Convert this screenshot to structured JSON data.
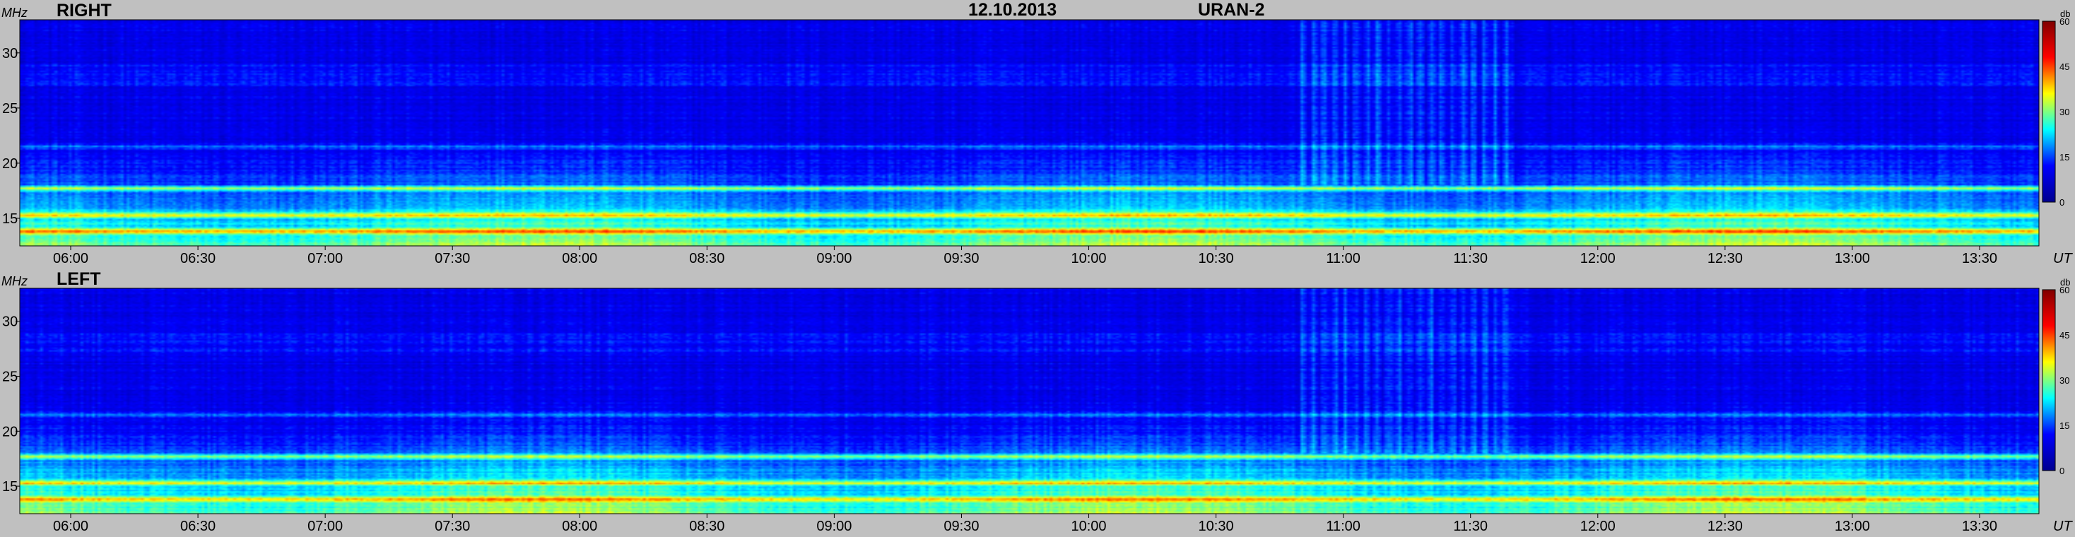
{
  "header": {
    "date": "12.10.2013",
    "instrument": "URAN-2"
  },
  "chart_data": [
    {
      "type": "heatmap",
      "panel_label": "RIGHT",
      "ylabel": "MHz",
      "xlabel": "UT",
      "colorbar_label": "db",
      "x_ticks": [
        "06:00",
        "06:30",
        "07:00",
        "07:30",
        "08:00",
        "08:30",
        "09:00",
        "09:30",
        "10:00",
        "10:30",
        "11:00",
        "11:30",
        "12:00",
        "12:30",
        "13:00",
        "13:30"
      ],
      "x_tick_minutes": [
        360,
        390,
        420,
        450,
        480,
        510,
        540,
        570,
        600,
        630,
        660,
        690,
        720,
        750,
        780,
        810
      ],
      "x_range_minutes": [
        348,
        824
      ],
      "y_ticks": [
        15,
        20,
        25,
        30
      ],
      "y_range_mhz": [
        12.5,
        33
      ],
      "colorbar_ticks": [
        0,
        15,
        30,
        45,
        60
      ],
      "color_range_db": [
        0,
        60
      ],
      "colormap": [
        "#00008f",
        "#0000ff",
        "#00ffff",
        "#ffff00",
        "#ff0000",
        "#800000"
      ],
      "strong_bands_mhz": [
        15.3,
        17.7,
        13.8,
        21.5
      ],
      "burst_interval_minutes": [
        650,
        700
      ]
    },
    {
      "type": "heatmap",
      "panel_label": "LEFT",
      "ylabel": "MHz",
      "xlabel": "UT",
      "colorbar_label": "db",
      "x_ticks": [
        "06:00",
        "06:30",
        "07:00",
        "07:30",
        "08:00",
        "08:30",
        "09:00",
        "09:30",
        "10:00",
        "10:30",
        "11:00",
        "11:30",
        "12:00",
        "12:30",
        "13:00",
        "13:30"
      ],
      "x_tick_minutes": [
        360,
        390,
        420,
        450,
        480,
        510,
        540,
        570,
        600,
        630,
        660,
        690,
        720,
        750,
        780,
        810
      ],
      "x_range_minutes": [
        348,
        824
      ],
      "y_ticks": [
        15,
        20,
        25,
        30
      ],
      "y_range_mhz": [
        12.5,
        33
      ],
      "colorbar_ticks": [
        0,
        15,
        30,
        45,
        60
      ],
      "color_range_db": [
        0,
        60
      ],
      "colormap": [
        "#00008f",
        "#0000ff",
        "#00ffff",
        "#ffff00",
        "#ff0000",
        "#800000"
      ],
      "strong_bands_mhz": [
        15.3,
        17.7,
        13.8,
        21.5
      ],
      "burst_interval_minutes": [
        650,
        700
      ]
    }
  ]
}
